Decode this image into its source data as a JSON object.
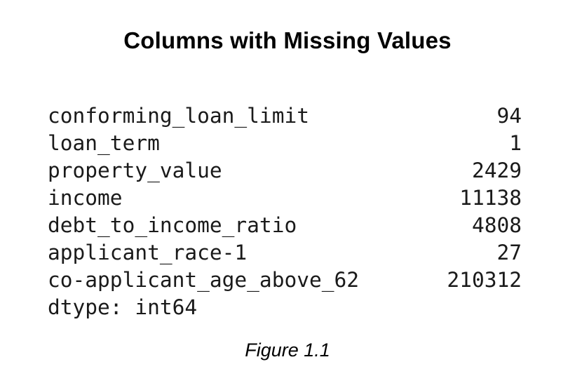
{
  "title": "Columns with Missing Values",
  "rows": [
    {
      "name": "conforming_loan_limit",
      "value": "94"
    },
    {
      "name": "loan_term",
      "value": "1"
    },
    {
      "name": "property_value",
      "value": "2429"
    },
    {
      "name": "income",
      "value": "11138"
    },
    {
      "name": "debt_to_income_ratio",
      "value": "4808"
    },
    {
      "name": "applicant_race-1",
      "value": "27"
    },
    {
      "name": "co-applicant_age_above_62",
      "value": "210312"
    }
  ],
  "dtype": "dtype: int64",
  "caption": "Figure 1.1"
}
